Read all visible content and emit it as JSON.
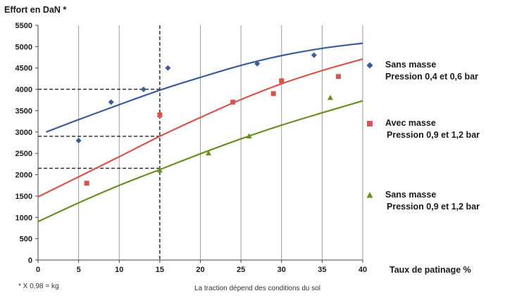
{
  "chart_data": {
    "type": "scatter",
    "title": "",
    "ylabel": "Effort en DaN *",
    "xlabel": "Taux de patinage %",
    "xlim": [
      0,
      40
    ],
    "ylim": [
      0,
      5500
    ],
    "x_ticks": [
      0,
      5,
      10,
      15,
      20,
      25,
      30,
      35,
      40
    ],
    "y_ticks": [
      0,
      500,
      1000,
      1500,
      2000,
      2500,
      3000,
      3500,
      4000,
      4500,
      5000,
      5500
    ],
    "grid": "vertical lines only",
    "legend_position": "right",
    "series": [
      {
        "name_line1": "Sans masse",
        "name_line2": "Pression 0,4 et  0,6 bar",
        "color": "#3b5b9a",
        "marker": "diamond",
        "points": [
          {
            "x": 5,
            "y": 2800
          },
          {
            "x": 9,
            "y": 3700
          },
          {
            "x": 13,
            "y": 4000
          },
          {
            "x": 16,
            "y": 4500
          },
          {
            "x": 27,
            "y": 4600
          },
          {
            "x": 34,
            "y": 4800
          }
        ],
        "trend": [
          {
            "x": 1,
            "y": 3000
          },
          {
            "x": 5,
            "y": 3290
          },
          {
            "x": 10,
            "y": 3640
          },
          {
            "x": 15,
            "y": 3980
          },
          {
            "x": 20,
            "y": 4280
          },
          {
            "x": 25,
            "y": 4560
          },
          {
            "x": 30,
            "y": 4790
          },
          {
            "x": 35,
            "y": 4960
          },
          {
            "x": 40,
            "y": 5080
          }
        ]
      },
      {
        "name_line1": "Avec masse",
        "name_line2": "Pression 0,9 et  1,2 bar",
        "color": "#d9534f",
        "marker": "square",
        "points": [
          {
            "x": 6,
            "y": 1800
          },
          {
            "x": 15,
            "y": 3400
          },
          {
            "x": 24,
            "y": 3700
          },
          {
            "x": 29,
            "y": 3900
          },
          {
            "x": 30,
            "y": 4200
          },
          {
            "x": 37,
            "y": 4300
          }
        ],
        "trend": [
          {
            "x": 0,
            "y": 1480
          },
          {
            "x": 5,
            "y": 1950
          },
          {
            "x": 10,
            "y": 2420
          },
          {
            "x": 15,
            "y": 2900
          },
          {
            "x": 20,
            "y": 3340
          },
          {
            "x": 25,
            "y": 3760
          },
          {
            "x": 30,
            "y": 4130
          },
          {
            "x": 35,
            "y": 4440
          },
          {
            "x": 40,
            "y": 4710
          }
        ]
      },
      {
        "name_line1": "Sans masse",
        "name_line2": "Pression 0,9 et  1,2 bar",
        "color": "#6b8e23",
        "marker": "triangle",
        "points": [
          {
            "x": 15,
            "y": 2100
          },
          {
            "x": 21,
            "y": 2500
          },
          {
            "x": 26,
            "y": 2900
          },
          {
            "x": 36,
            "y": 3800
          }
        ],
        "trend": [
          {
            "x": 0,
            "y": 900
          },
          {
            "x": 5,
            "y": 1340
          },
          {
            "x": 10,
            "y": 1750
          },
          {
            "x": 15,
            "y": 2120
          },
          {
            "x": 20,
            "y": 2490
          },
          {
            "x": 25,
            "y": 2840
          },
          {
            "x": 30,
            "y": 3160
          },
          {
            "x": 35,
            "y": 3450
          },
          {
            "x": 40,
            "y": 3730
          }
        ]
      }
    ],
    "reference_lines": {
      "vertical_x": 15,
      "horizontal_y": [
        4000,
        2900,
        2150
      ]
    },
    "footnote_left": "* X 0,98 = kg",
    "footnote_center": "La traction dépend des conditions du sol"
  }
}
